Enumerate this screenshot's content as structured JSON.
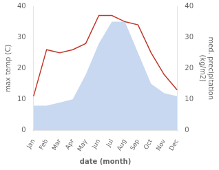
{
  "chart_data": {
    "type": "line",
    "categories": [
      "Jan",
      "Feb",
      "Mar",
      "Apr",
      "May",
      "Jun",
      "Jul",
      "Aug",
      "Sep",
      "Oct",
      "Nov",
      "Dec"
    ],
    "series": [
      {
        "type": "area",
        "color": "#c8d8f0",
        "values": [
          8,
          8,
          9,
          10,
          18,
          28,
          35,
          35,
          25,
          15,
          12,
          11
        ]
      },
      {
        "type": "line",
        "color": "#c0392b",
        "values": [
          11,
          26,
          25,
          26,
          28,
          37,
          37,
          35,
          34,
          25,
          18,
          13
        ]
      }
    ],
    "xlabel": "date (month)",
    "ylabel": "max temp (C)",
    "y2label": "med. precipitation\n(kg/m2)",
    "ylim": [
      0,
      40
    ],
    "yticks": [
      0,
      10,
      20,
      30,
      40
    ],
    "y2lim": [
      0,
      40
    ],
    "y2ticks": [
      0,
      10,
      20,
      30,
      40
    ],
    "grid": false
  }
}
